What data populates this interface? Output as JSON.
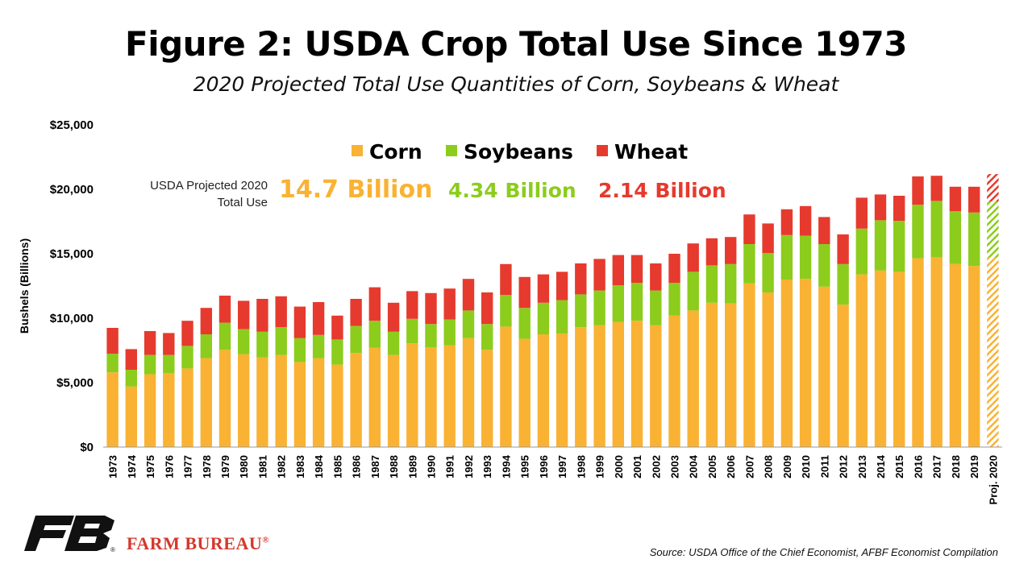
{
  "chart_data": {
    "type": "bar",
    "stacked": true,
    "title": "Figure 2: USDA Crop Total Use Since 1973",
    "subtitle": "2020 Projected Total Use Quantities of Corn, Soybeans & Wheat",
    "ylabel": "Bushels (Billions)",
    "xlabel": "",
    "ylim": [
      0,
      25000
    ],
    "yticks": [
      "$0",
      "$5,000",
      "$10,000",
      "$15,000",
      "$20,000",
      "$25,000"
    ],
    "grid": false,
    "legend_position": "top-center",
    "categories": [
      "1973",
      "1974",
      "1975",
      "1976",
      "1977",
      "1978",
      "1979",
      "1980",
      "1981",
      "1982",
      "1983",
      "1984",
      "1985",
      "1986",
      "1987",
      "1988",
      "1989",
      "1990",
      "1991",
      "1992",
      "1993",
      "1994",
      "1995",
      "1996",
      "1997",
      "1998",
      "1999",
      "2000",
      "2001",
      "2002",
      "2003",
      "2004",
      "2005",
      "2006",
      "2007",
      "2008",
      "2009",
      "2010",
      "2011",
      "2012",
      "2013",
      "2014",
      "2015",
      "2016",
      "2017",
      "2018",
      "2019",
      "Proj. 2020"
    ],
    "series": [
      {
        "name": "Corn",
        "color": "#f9b233",
        "values": [
          5800,
          4700,
          5650,
          5750,
          6100,
          6900,
          7550,
          7200,
          6950,
          7150,
          6600,
          6900,
          6400,
          7300,
          7700,
          7150,
          8050,
          7750,
          7900,
          8450,
          7550,
          9350,
          8400,
          8750,
          8800,
          9300,
          9450,
          9700,
          9800,
          9450,
          10200,
          10600,
          11200,
          11150,
          12700,
          12000,
          13000,
          13050,
          12450,
          11050,
          13400,
          13700,
          13600,
          14650,
          14750,
          14200,
          14050,
          14700
        ]
      },
      {
        "name": "Soybeans",
        "color": "#8ccc1c",
        "values": [
          1450,
          1300,
          1500,
          1400,
          1750,
          1850,
          2100,
          1950,
          2000,
          2150,
          1850,
          1800,
          1950,
          2100,
          2100,
          1800,
          1900,
          1800,
          2000,
          2150,
          2000,
          2450,
          2400,
          2450,
          2600,
          2550,
          2700,
          2850,
          2950,
          2700,
          2550,
          3000,
          2900,
          3050,
          3050,
          3050,
          3450,
          3350,
          3300,
          3150,
          3550,
          3900,
          3950,
          4150,
          4350,
          4100,
          4150,
          4340
        ]
      },
      {
        "name": "Wheat",
        "color": "#e63a2e",
        "values": [
          2000,
          1600,
          1850,
          1700,
          1950,
          2050,
          2100,
          2200,
          2550,
          2400,
          2450,
          2550,
          1850,
          2100,
          2600,
          2250,
          2150,
          2400,
          2400,
          2450,
          2450,
          2400,
          2400,
          2200,
          2200,
          2400,
          2450,
          2350,
          2150,
          2100,
          2250,
          2200,
          2100,
          2100,
          2300,
          2300,
          2000,
          2300,
          2100,
          2300,
          2400,
          2000,
          1950,
          2200,
          1950,
          1900,
          2000,
          2140
        ]
      }
    ],
    "projected_category": "Proj. 2020"
  },
  "legend": {
    "corn": "Corn",
    "soybeans": "Soybeans",
    "wheat": "Wheat"
  },
  "projection_note": {
    "label_line1": "USDA Projected 2020",
    "label_line2": "Total Use",
    "corn": "14.7 Billion",
    "soybeans": "4.34 Billion",
    "wheat": "2.14 Billion"
  },
  "footer": {
    "source": "Source: USDA Office of the Chief Economist, AFBF Economist Compilation",
    "brand": "FARM BUREAU",
    "brand_mark": "®"
  }
}
